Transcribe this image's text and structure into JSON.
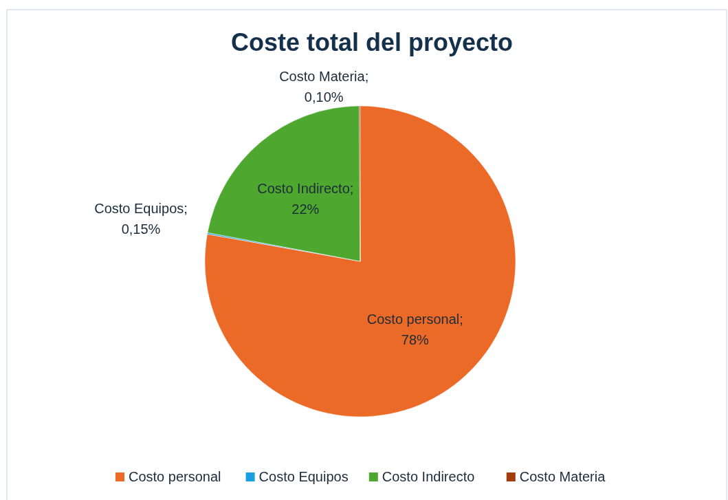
{
  "chart_data": {
    "type": "pie",
    "title": "Coste total del proyecto",
    "categories": [
      "Costo personal",
      "Costo Equipos",
      "Costo Indirecto",
      "Costo Materia"
    ],
    "values": [
      78,
      0.15,
      22,
      0.1
    ],
    "value_labels": [
      "Costo personal;\n78%",
      "Costo Equipos;\n0,15%",
      "Costo Indirecto;\n22%",
      "Costo Materia;\n0,10%"
    ],
    "colors": [
      "#ec6a28",
      "#1a9fe0",
      "#4ea72e",
      "#a23d0e"
    ],
    "legend": "bottom"
  }
}
